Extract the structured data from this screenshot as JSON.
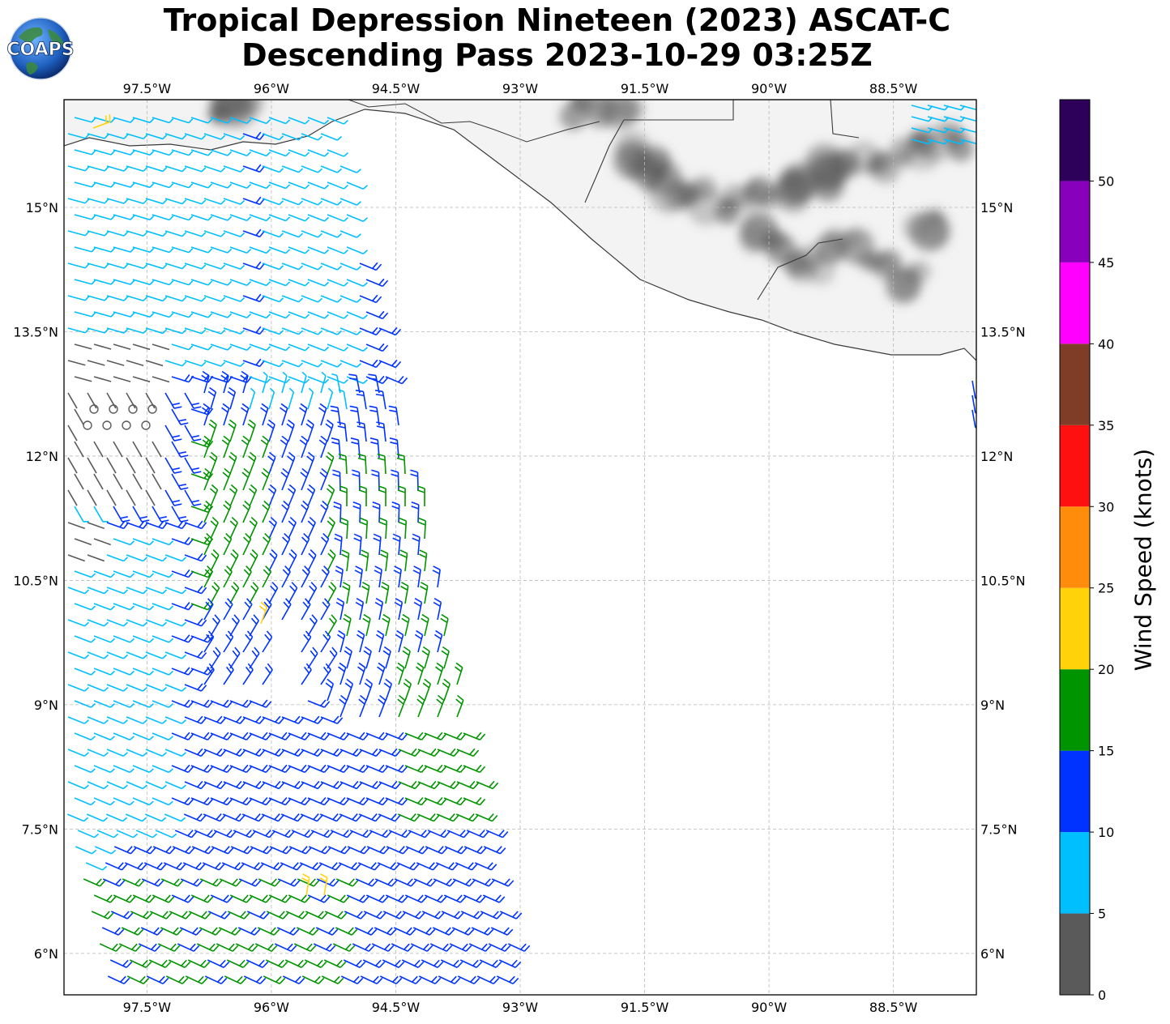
{
  "header": {
    "title_line1": "Tropical Depression Nineteen (2023) ASCAT-C",
    "title_line2": "Descending Pass 2023-10-29 03:25Z"
  },
  "logo": {
    "text": "COAPS",
    "icon": "globe-icon"
  },
  "map": {
    "projection": "Plate Carree",
    "lon_range": [
      -98.5,
      -87.5
    ],
    "lat_range": [
      5.5,
      16.3
    ],
    "lon_ticks": [
      "97.5°W",
      "96°W",
      "94.5°W",
      "93°W",
      "91.5°W",
      "90°W",
      "88.5°W"
    ],
    "lat_ticks": [
      "15°N",
      "13.5°N",
      "12°N",
      "10.5°N",
      "9°N",
      "7.5°N",
      "6°N"
    ],
    "gridlines": true,
    "land_shading": "grayscale elevation",
    "features": [
      "coastline",
      "country borders",
      "wind barbs"
    ]
  },
  "colorbar": {
    "label": "Wind Speed (knots)",
    "ticks": [
      "0",
      "5",
      "10",
      "15",
      "20",
      "25",
      "30",
      "35",
      "40",
      "45",
      "50"
    ],
    "bins": [
      {
        "range": "0-5",
        "color": "#5a5a5a"
      },
      {
        "range": "5-10",
        "color": "#00bfff"
      },
      {
        "range": "10-15",
        "color": "#0033ff"
      },
      {
        "range": "15-20",
        "color": "#009400"
      },
      {
        "range": "20-25",
        "color": "#ffd20a"
      },
      {
        "range": "25-30",
        "color": "#ff8c0a"
      },
      {
        "range": "30-35",
        "color": "#ff1010"
      },
      {
        "range": "35-40",
        "color": "#7f3c26"
      },
      {
        "range": "40-45",
        "color": "#ff00ff"
      },
      {
        "range": "45-50",
        "color": "#8800bb"
      },
      {
        "range": "50+",
        "color": "#2d005a"
      }
    ]
  }
}
